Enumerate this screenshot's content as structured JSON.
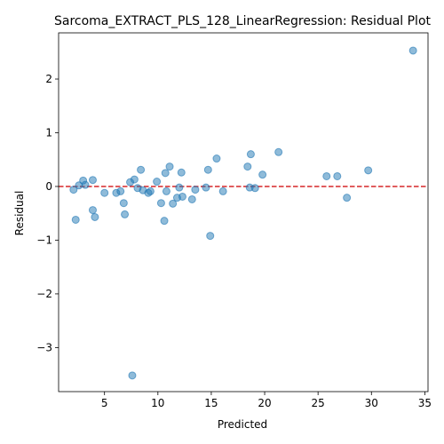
{
  "chart_data": {
    "type": "scatter",
    "title": "Sarcoma_EXTRACT_PLS_128_LinearRegression: Residual Plot",
    "xlabel": "Predicted",
    "ylabel": "Residual",
    "xlim": [
      0.7,
      35.3
    ],
    "ylim": [
      -3.82,
      2.86
    ],
    "xticks": [
      5,
      10,
      15,
      20,
      25,
      30,
      35
    ],
    "yticks": [
      -3,
      -2,
      -1,
      0,
      1,
      2
    ],
    "ytick_labels": [
      "−3",
      "−2",
      "−1",
      "0",
      "1",
      "2"
    ],
    "point_color": "#1f77b4",
    "reference_line": {
      "y": 0,
      "color": "#d62728",
      "style": "dashed"
    },
    "grid": false,
    "points": [
      {
        "x": 2.1,
        "y": -0.06
      },
      {
        "x": 2.3,
        "y": -0.62
      },
      {
        "x": 2.6,
        "y": 0.02
      },
      {
        "x": 3.0,
        "y": 0.11
      },
      {
        "x": 3.2,
        "y": 0.03
      },
      {
        "x": 3.9,
        "y": 0.12
      },
      {
        "x": 3.9,
        "y": -0.44
      },
      {
        "x": 4.1,
        "y": -0.57
      },
      {
        "x": 5.0,
        "y": -0.12
      },
      {
        "x": 6.1,
        "y": -0.12
      },
      {
        "x": 6.5,
        "y": -0.09
      },
      {
        "x": 6.8,
        "y": -0.31
      },
      {
        "x": 6.9,
        "y": -0.52
      },
      {
        "x": 7.4,
        "y": 0.08
      },
      {
        "x": 7.6,
        "y": -3.52
      },
      {
        "x": 7.8,
        "y": 0.13
      },
      {
        "x": 8.1,
        "y": -0.03
      },
      {
        "x": 8.4,
        "y": 0.31
      },
      {
        "x": 8.6,
        "y": -0.07
      },
      {
        "x": 9.1,
        "y": -0.12
      },
      {
        "x": 9.3,
        "y": -0.09
      },
      {
        "x": 9.9,
        "y": 0.09
      },
      {
        "x": 10.3,
        "y": -0.31
      },
      {
        "x": 10.6,
        "y": -0.64
      },
      {
        "x": 10.7,
        "y": 0.25
      },
      {
        "x": 10.8,
        "y": -0.09
      },
      {
        "x": 11.1,
        "y": 0.37
      },
      {
        "x": 11.4,
        "y": -0.32
      },
      {
        "x": 11.8,
        "y": -0.21
      },
      {
        "x": 12.0,
        "y": -0.02
      },
      {
        "x": 12.2,
        "y": 0.26
      },
      {
        "x": 12.3,
        "y": -0.19
      },
      {
        "x": 13.2,
        "y": -0.24
      },
      {
        "x": 13.5,
        "y": -0.06
      },
      {
        "x": 14.5,
        "y": -0.02
      },
      {
        "x": 14.7,
        "y": 0.31
      },
      {
        "x": 14.9,
        "y": -0.92
      },
      {
        "x": 15.5,
        "y": 0.52
      },
      {
        "x": 16.1,
        "y": -0.09
      },
      {
        "x": 18.4,
        "y": 0.37
      },
      {
        "x": 18.6,
        "y": -0.02
      },
      {
        "x": 18.7,
        "y": 0.6
      },
      {
        "x": 19.1,
        "y": -0.03
      },
      {
        "x": 19.8,
        "y": 0.22
      },
      {
        "x": 21.3,
        "y": 0.64
      },
      {
        "x": 25.8,
        "y": 0.19
      },
      {
        "x": 26.8,
        "y": 0.19
      },
      {
        "x": 27.7,
        "y": -0.21
      },
      {
        "x": 29.7,
        "y": 0.3
      },
      {
        "x": 33.9,
        "y": 2.53
      }
    ]
  }
}
